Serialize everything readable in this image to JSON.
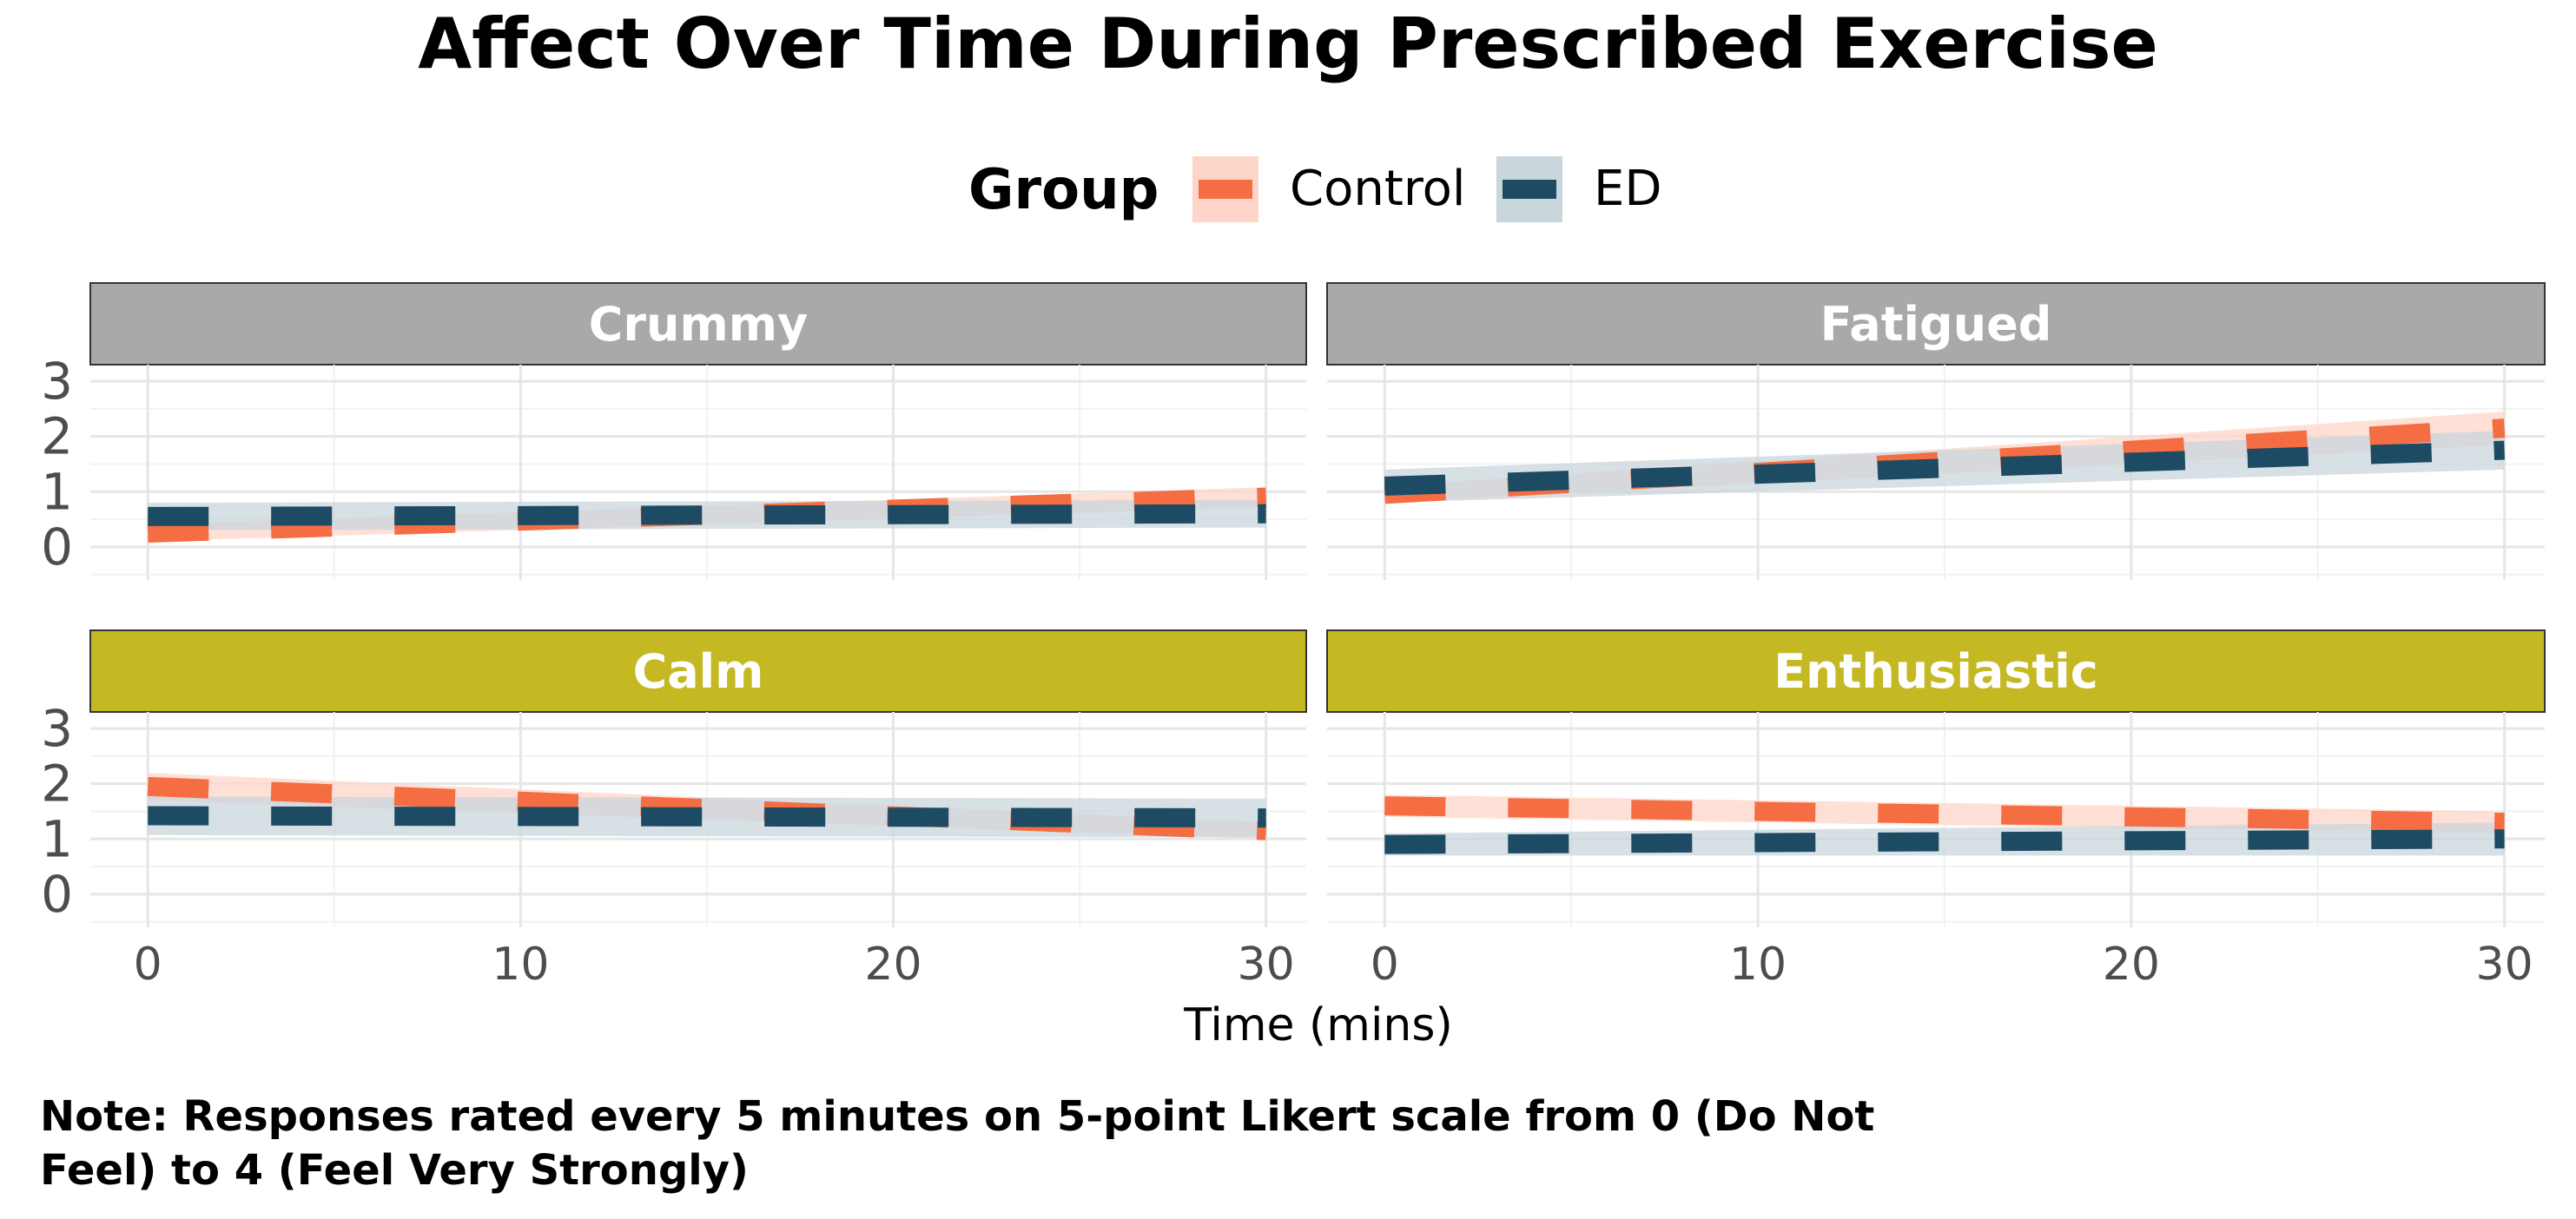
{
  "chart_data": {
    "type": "line",
    "title": "Affect Over Time During Prescribed Exercise",
    "xlabel": "Time (mins)",
    "ylabel": "",
    "xlim": [
      0,
      30
    ],
    "ylim": [
      -0.6,
      3.3
    ],
    "x_ticks": [
      0,
      10,
      20,
      30
    ],
    "y_ticks": [
      0,
      1,
      2,
      3
    ],
    "grid": true,
    "legend": {
      "title": "Group",
      "position": "top",
      "entries": [
        {
          "name": "Control",
          "color": "#F46D43",
          "band_color": "#FDD6C9"
        },
        {
          "name": "ED",
          "color": "#1C4B63",
          "band_color": "#C9D6DC"
        }
      ]
    },
    "panels": [
      {
        "name": "Crummy",
        "strip_color": "#A9A9A9",
        "series": [
          {
            "name": "Control",
            "y_start": 0.25,
            "y_end": 0.9,
            "ci_halfwidth_start": 0.15,
            "ci_halfwidth_end": 0.18
          },
          {
            "name": "ED",
            "y_start": 0.55,
            "y_end": 0.6,
            "ci_halfwidth_start": 0.25,
            "ci_halfwidth_end": 0.25
          }
        ]
      },
      {
        "name": "Fatigued",
        "strip_color": "#A9A9A9",
        "series": [
          {
            "name": "Control",
            "y_start": 0.95,
            "y_end": 2.15,
            "ci_halfwidth_start": 0.15,
            "ci_halfwidth_end": 0.3
          },
          {
            "name": "ED",
            "y_start": 1.1,
            "y_end": 1.75,
            "ci_halfwidth_start": 0.3,
            "ci_halfwidth_end": 0.35
          }
        ]
      },
      {
        "name": "Calm",
        "strip_color": "#C4B923",
        "series": [
          {
            "name": "Control",
            "y_start": 1.95,
            "y_end": 1.15,
            "ci_halfwidth_start": 0.25,
            "ci_halfwidth_end": 0.15
          },
          {
            "name": "ED",
            "y_start": 1.42,
            "y_end": 1.38,
            "ci_halfwidth_start": 0.35,
            "ci_halfwidth_end": 0.35
          }
        ]
      },
      {
        "name": "Enthusiastic",
        "strip_color": "#C4B923",
        "series": [
          {
            "name": "Control",
            "y_start": 1.6,
            "y_end": 1.3,
            "ci_halfwidth_start": 0.2,
            "ci_halfwidth_end": 0.2
          },
          {
            "name": "ED",
            "y_start": 0.9,
            "y_end": 1.0,
            "ci_halfwidth_start": 0.2,
            "ci_halfwidth_end": 0.3
          }
        ]
      }
    ]
  },
  "note": "Note: Responses rated every 5 minutes on 5-point Likert scale from 0 (Do Not Feel) to 4 (Feel Very Strongly)"
}
